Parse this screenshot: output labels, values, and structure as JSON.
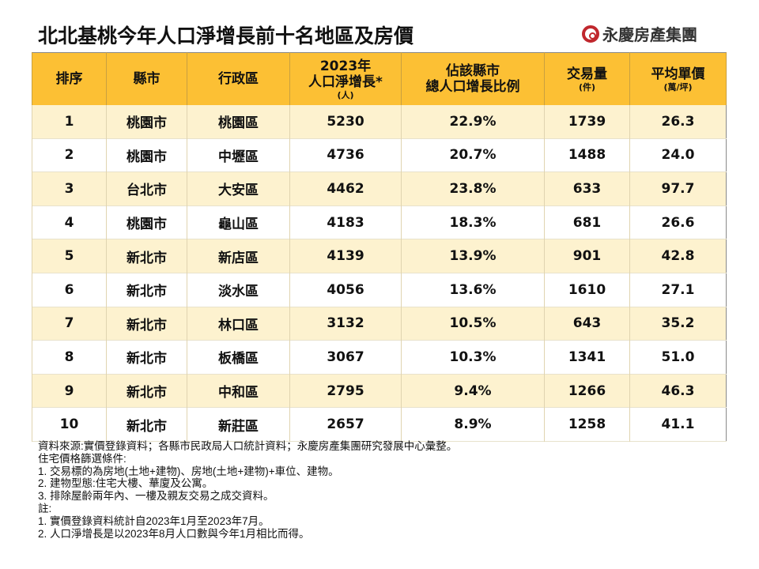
{
  "title": "北北基桃今年人口淨增長前十名地區及房價",
  "brand": "永慶房產集團",
  "headers": {
    "rank": "排序",
    "city": "縣市",
    "district": "行政區",
    "growth": "2023年",
    "growth2": "人口淨增長*",
    "growth_unit": "(人)",
    "ratio": "佔該縣市",
    "ratio2": "總人口增長比例",
    "volume": "交易量",
    "volume_unit": "(件)",
    "price": "平均單價",
    "price_unit": "(萬/坪)"
  },
  "rows": [
    [
      "1",
      "桃園市",
      "桃園區",
      "5230",
      "22.9%",
      "1739",
      "26.3"
    ],
    [
      "2",
      "桃園市",
      "中壢區",
      "4736",
      "20.7%",
      "1488",
      "24.0"
    ],
    [
      "3",
      "台北市",
      "大安區",
      "4462",
      "23.8%",
      "633",
      "97.7"
    ],
    [
      "4",
      "桃園市",
      "龜山區",
      "4183",
      "18.3%",
      "681",
      "26.6"
    ],
    [
      "5",
      "新北市",
      "新店區",
      "4139",
      "13.9%",
      "901",
      "42.8"
    ],
    [
      "6",
      "新北市",
      "淡水區",
      "4056",
      "13.6%",
      "1610",
      "27.1"
    ],
    [
      "7",
      "新北市",
      "林口區",
      "3132",
      "10.5%",
      "643",
      "35.2"
    ],
    [
      "8",
      "新北市",
      "板橋區",
      "3067",
      "10.3%",
      "1341",
      "51.0"
    ],
    [
      "9",
      "新北市",
      "中和區",
      "2795",
      "9.4%",
      "1266",
      "46.3"
    ],
    [
      "10",
      "新北市",
      "新莊區",
      "2657",
      "8.9%",
      "1258",
      "41.1"
    ]
  ],
  "notes": [
    "資料來源:實價登錄資料；各縣市民政局人口統計資料；永慶房產集團研究發展中心彙整。",
    "住宅價格篩選條件:",
    "1. 交易標的為房地(土地+建物)、房地(土地+建物)+車位、建物。",
    "2. 建物型態:住宅大樓、華廈及公寓。",
    "3. 排除屋齡兩年內、一樓及親友交易之成交資料。",
    "註:",
    "1. 實價登錄資料統計自2023年1月至2023年7月。",
    "2. 人口淨增長是以2023年8月人口數與今年1月相比而得。"
  ],
  "colors": {
    "header": "#fcc034",
    "row_alt": "#fdf2cf",
    "brand": "#c0272d"
  }
}
